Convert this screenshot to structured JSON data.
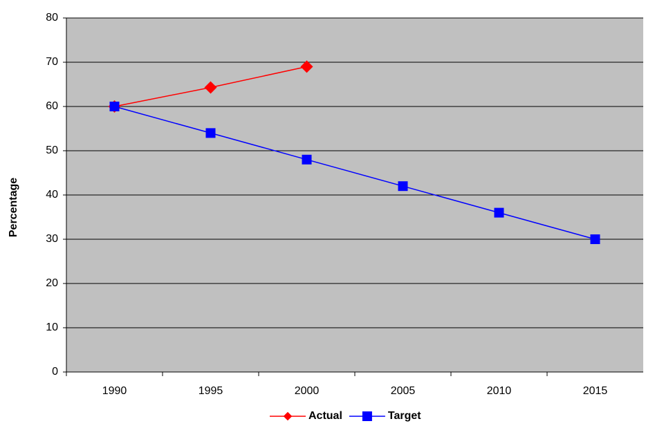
{
  "chart_data": {
    "type": "line",
    "y_label": "Percentage",
    "categories": [
      "1990",
      "1995",
      "2000",
      "2005",
      "2010",
      "2015"
    ],
    "series": [
      {
        "name": "Actual",
        "color": "#ff0000",
        "marker": "diamond",
        "values": [
          60,
          64.3,
          69,
          null,
          null,
          null
        ]
      },
      {
        "name": "Target",
        "color": "#0000ff",
        "marker": "square",
        "values": [
          60,
          54,
          48,
          42,
          36,
          30
        ]
      }
    ],
    "ylim": [
      0,
      80
    ],
    "yticks": [
      0,
      10,
      20,
      30,
      40,
      50,
      60,
      70,
      80
    ],
    "grid": true,
    "plot_background": "#c0c0c0",
    "legend": "bottom"
  }
}
